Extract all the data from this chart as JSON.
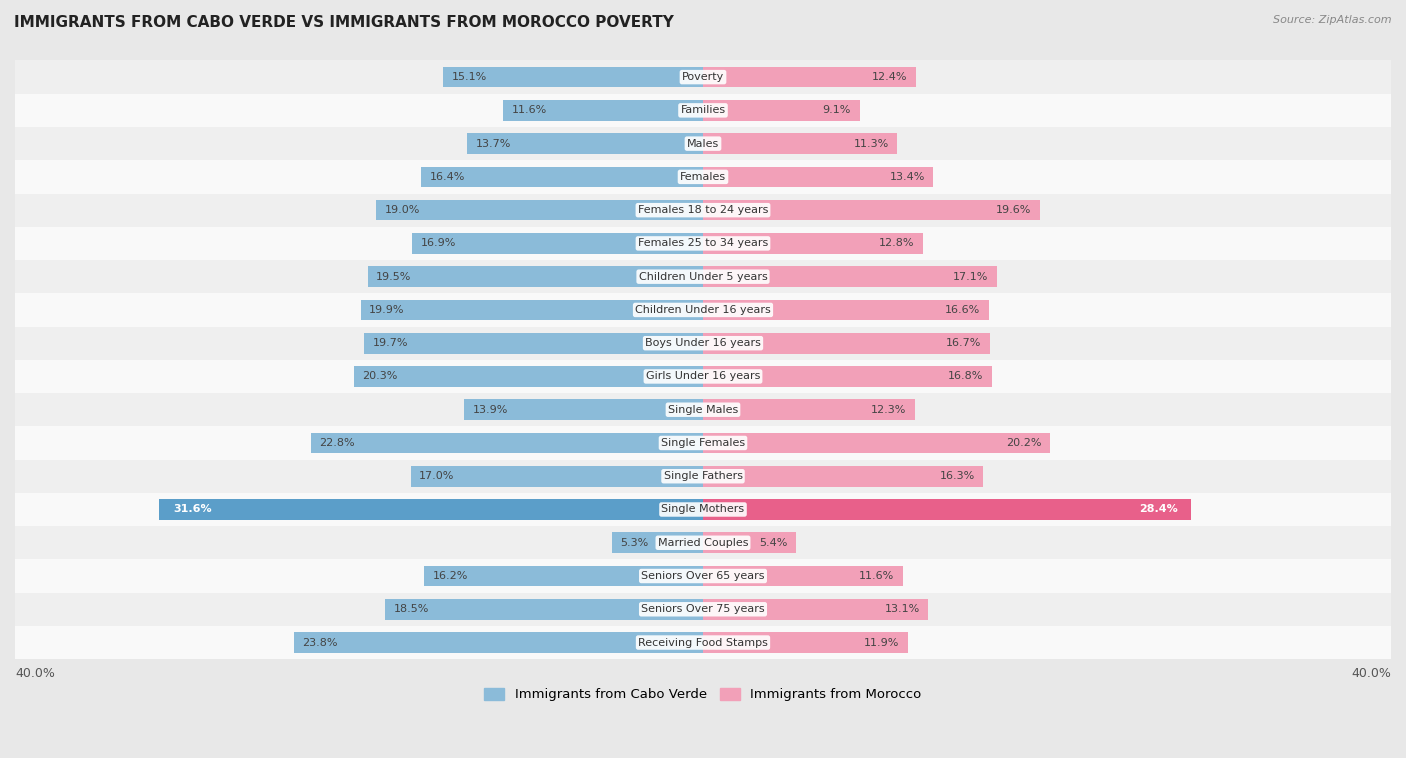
{
  "title": "IMMIGRANTS FROM CABO VERDE VS IMMIGRANTS FROM MOROCCO POVERTY",
  "source": "Source: ZipAtlas.com",
  "categories": [
    "Poverty",
    "Families",
    "Males",
    "Females",
    "Females 18 to 24 years",
    "Females 25 to 34 years",
    "Children Under 5 years",
    "Children Under 16 years",
    "Boys Under 16 years",
    "Girls Under 16 years",
    "Single Males",
    "Single Females",
    "Single Fathers",
    "Single Mothers",
    "Married Couples",
    "Seniors Over 65 years",
    "Seniors Over 75 years",
    "Receiving Food Stamps"
  ],
  "cabo_verde": [
    15.1,
    11.6,
    13.7,
    16.4,
    19.0,
    16.9,
    19.5,
    19.9,
    19.7,
    20.3,
    13.9,
    22.8,
    17.0,
    31.6,
    5.3,
    16.2,
    18.5,
    23.8
  ],
  "morocco": [
    12.4,
    9.1,
    11.3,
    13.4,
    19.6,
    12.8,
    17.1,
    16.6,
    16.7,
    16.8,
    12.3,
    20.2,
    16.3,
    28.4,
    5.4,
    11.6,
    13.1,
    11.9
  ],
  "cabo_verde_color": "#8bbbd9",
  "morocco_color": "#f2a0b8",
  "cabo_verde_highlight": "#5b9ec9",
  "morocco_highlight": "#e8608a",
  "axis_max": 40.0,
  "bg_color": "#e8e8e8",
  "row_bg_light": "#f5f5f5",
  "row_bg_dark": "#e0e0e0",
  "legend_cabo": "Immigrants from Cabo Verde",
  "legend_morocco": "Immigrants from Morocco"
}
